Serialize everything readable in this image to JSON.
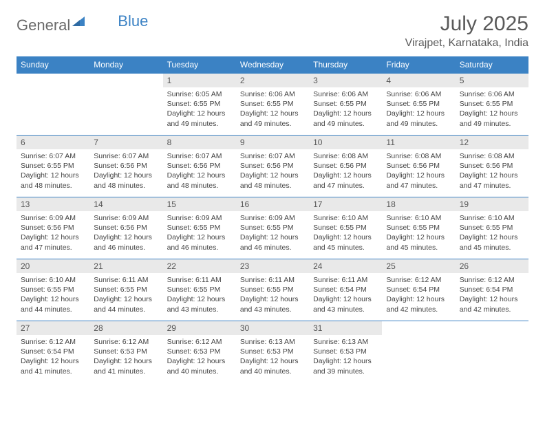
{
  "brand": {
    "part1": "General",
    "part2": "Blue"
  },
  "header": {
    "month": "July 2025",
    "location": "Virajpet, Karnataka, India"
  },
  "colors": {
    "header_bg": "#3b82c4",
    "daynum_bg": "#e9e9e9",
    "row_border": "#3b82c4",
    "text": "#444444",
    "title_text": "#5a5a5a"
  },
  "typography": {
    "month_fontsize": 30,
    "location_fontsize": 16,
    "weekday_fontsize": 12,
    "body_fontsize": 10.5
  },
  "layout": {
    "cols": 7,
    "rows": 5,
    "first_weekday_index": 2,
    "days_in_month": 31
  },
  "weekdays": [
    "Sunday",
    "Monday",
    "Tuesday",
    "Wednesday",
    "Thursday",
    "Friday",
    "Saturday"
  ],
  "days": [
    {
      "n": 1,
      "sunrise": "6:05 AM",
      "sunset": "6:55 PM",
      "daylight": "12 hours and 49 minutes."
    },
    {
      "n": 2,
      "sunrise": "6:06 AM",
      "sunset": "6:55 PM",
      "daylight": "12 hours and 49 minutes."
    },
    {
      "n": 3,
      "sunrise": "6:06 AM",
      "sunset": "6:55 PM",
      "daylight": "12 hours and 49 minutes."
    },
    {
      "n": 4,
      "sunrise": "6:06 AM",
      "sunset": "6:55 PM",
      "daylight": "12 hours and 49 minutes."
    },
    {
      "n": 5,
      "sunrise": "6:06 AM",
      "sunset": "6:55 PM",
      "daylight": "12 hours and 49 minutes."
    },
    {
      "n": 6,
      "sunrise": "6:07 AM",
      "sunset": "6:55 PM",
      "daylight": "12 hours and 48 minutes."
    },
    {
      "n": 7,
      "sunrise": "6:07 AM",
      "sunset": "6:56 PM",
      "daylight": "12 hours and 48 minutes."
    },
    {
      "n": 8,
      "sunrise": "6:07 AM",
      "sunset": "6:56 PM",
      "daylight": "12 hours and 48 minutes."
    },
    {
      "n": 9,
      "sunrise": "6:07 AM",
      "sunset": "6:56 PM",
      "daylight": "12 hours and 48 minutes."
    },
    {
      "n": 10,
      "sunrise": "6:08 AM",
      "sunset": "6:56 PM",
      "daylight": "12 hours and 47 minutes."
    },
    {
      "n": 11,
      "sunrise": "6:08 AM",
      "sunset": "6:56 PM",
      "daylight": "12 hours and 47 minutes."
    },
    {
      "n": 12,
      "sunrise": "6:08 AM",
      "sunset": "6:56 PM",
      "daylight": "12 hours and 47 minutes."
    },
    {
      "n": 13,
      "sunrise": "6:09 AM",
      "sunset": "6:56 PM",
      "daylight": "12 hours and 47 minutes."
    },
    {
      "n": 14,
      "sunrise": "6:09 AM",
      "sunset": "6:56 PM",
      "daylight": "12 hours and 46 minutes."
    },
    {
      "n": 15,
      "sunrise": "6:09 AM",
      "sunset": "6:55 PM",
      "daylight": "12 hours and 46 minutes."
    },
    {
      "n": 16,
      "sunrise": "6:09 AM",
      "sunset": "6:55 PM",
      "daylight": "12 hours and 46 minutes."
    },
    {
      "n": 17,
      "sunrise": "6:10 AM",
      "sunset": "6:55 PM",
      "daylight": "12 hours and 45 minutes."
    },
    {
      "n": 18,
      "sunrise": "6:10 AM",
      "sunset": "6:55 PM",
      "daylight": "12 hours and 45 minutes."
    },
    {
      "n": 19,
      "sunrise": "6:10 AM",
      "sunset": "6:55 PM",
      "daylight": "12 hours and 45 minutes."
    },
    {
      "n": 20,
      "sunrise": "6:10 AM",
      "sunset": "6:55 PM",
      "daylight": "12 hours and 44 minutes."
    },
    {
      "n": 21,
      "sunrise": "6:11 AM",
      "sunset": "6:55 PM",
      "daylight": "12 hours and 44 minutes."
    },
    {
      "n": 22,
      "sunrise": "6:11 AM",
      "sunset": "6:55 PM",
      "daylight": "12 hours and 43 minutes."
    },
    {
      "n": 23,
      "sunrise": "6:11 AM",
      "sunset": "6:55 PM",
      "daylight": "12 hours and 43 minutes."
    },
    {
      "n": 24,
      "sunrise": "6:11 AM",
      "sunset": "6:54 PM",
      "daylight": "12 hours and 43 minutes."
    },
    {
      "n": 25,
      "sunrise": "6:12 AM",
      "sunset": "6:54 PM",
      "daylight": "12 hours and 42 minutes."
    },
    {
      "n": 26,
      "sunrise": "6:12 AM",
      "sunset": "6:54 PM",
      "daylight": "12 hours and 42 minutes."
    },
    {
      "n": 27,
      "sunrise": "6:12 AM",
      "sunset": "6:54 PM",
      "daylight": "12 hours and 41 minutes."
    },
    {
      "n": 28,
      "sunrise": "6:12 AM",
      "sunset": "6:53 PM",
      "daylight": "12 hours and 41 minutes."
    },
    {
      "n": 29,
      "sunrise": "6:12 AM",
      "sunset": "6:53 PM",
      "daylight": "12 hours and 40 minutes."
    },
    {
      "n": 30,
      "sunrise": "6:13 AM",
      "sunset": "6:53 PM",
      "daylight": "12 hours and 40 minutes."
    },
    {
      "n": 31,
      "sunrise": "6:13 AM",
      "sunset": "6:53 PM",
      "daylight": "12 hours and 39 minutes."
    }
  ],
  "labels": {
    "sunrise": "Sunrise:",
    "sunset": "Sunset:",
    "daylight": "Daylight:"
  }
}
